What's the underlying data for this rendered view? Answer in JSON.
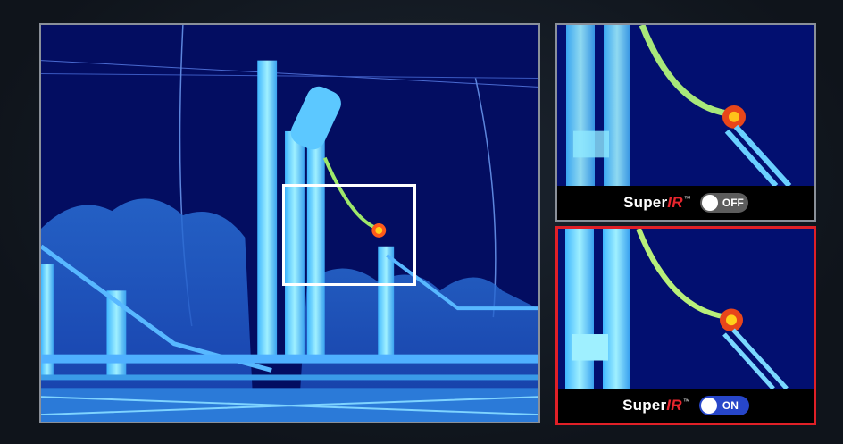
{
  "main_view": {
    "description_icon": "thermal-image"
  },
  "panels": [
    {
      "brand_main": "Super",
      "brand_accent": "IR",
      "brand_tm": "™",
      "toggle_state": "OFF"
    },
    {
      "brand_main": "Super",
      "brand_accent": "IR",
      "brand_tm": "™",
      "toggle_state": "ON"
    }
  ],
  "colors": {
    "accent_red": "#e02027",
    "toggle_on": "#2746c9",
    "toggle_off": "#5c5c5c",
    "frame": "#8a9099"
  }
}
